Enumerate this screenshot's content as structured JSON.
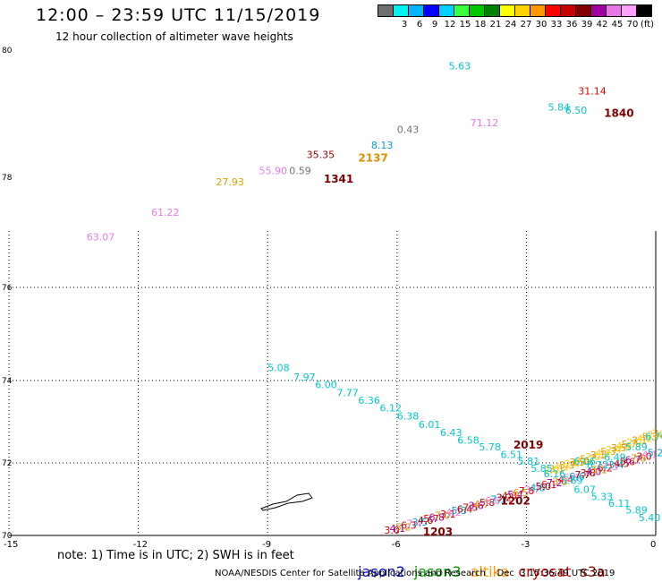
{
  "header": {
    "title": "12:00 – 23:59 UTC 11/15/2019",
    "subtitle": "12 hour collection of altimeter wave heights"
  },
  "legend": {
    "colors": [
      "#777777",
      "#00ffff",
      "#00ccff",
      "#0000ff",
      "#00ccff",
      "#00ff00",
      "#00cc00",
      "#009900",
      "#ffff00",
      "#ffcc00",
      "#ff9900",
      "#ff0000",
      "#cc0000",
      "#990000",
      "#990099",
      "#cc66cc",
      "#ff99ff",
      "#000000"
    ],
    "swatch_colors": [
      "#6e6e6e",
      "#00f2f2",
      "#00b4ff",
      "#0000ff",
      "#00d2ff",
      "#3cff3c",
      "#00c800",
      "#008200",
      "#ffff00",
      "#ffd200",
      "#ff9600",
      "#ff0000",
      "#c80000",
      "#820000",
      "#a000a0",
      "#e678e6",
      "#ffa0ff",
      "#000000"
    ],
    "labels": [
      "3",
      "6",
      "9",
      "12",
      "15",
      "18",
      "21",
      "24",
      "27",
      "30",
      "33",
      "36",
      "39",
      "42",
      "45",
      "70"
    ],
    "unit": "(ft)"
  },
  "axes": {
    "lat_labels": [
      "80",
      "78",
      "76",
      "74",
      "72",
      "70"
    ],
    "lon_labels": [
      "-15",
      "-12",
      "-9",
      "-6",
      "-3",
      "0"
    ]
  },
  "wave_labels": [
    {
      "text": "5.63",
      "color": "#00c8c8",
      "lon": -4.8,
      "lat": 79.7
    },
    {
      "text": "31.14",
      "color": "#e00000",
      "lon": -1.8,
      "lat": 79.3
    },
    {
      "text": "5.84",
      "color": "#00c8c8",
      "lon": -2.5,
      "lat": 79.05
    },
    {
      "text": "6.50",
      "color": "#00c8c8",
      "lon": -2.1,
      "lat": 79.0
    },
    {
      "text": "71.12",
      "color": "#e678e6",
      "lon": -4.3,
      "lat": 78.8
    },
    {
      "text": "0.43",
      "color": "#707070",
      "lon": -6.0,
      "lat": 78.7
    },
    {
      "text": "8.13",
      "color": "#00a0d0",
      "lon": -6.6,
      "lat": 78.45
    },
    {
      "text": "35.35",
      "color": "#990000",
      "lon": -8.1,
      "lat": 78.3
    },
    {
      "text": "55.90",
      "color": "#e678e6",
      "lon": -9.2,
      "lat": 78.05
    },
    {
      "text": "0.59",
      "color": "#707070",
      "lon": -8.5,
      "lat": 78.05
    },
    {
      "text": "27.93",
      "color": "#e0a000",
      "lon": -10.2,
      "lat": 77.85
    },
    {
      "text": "61.22",
      "color": "#e678e6",
      "lon": -11.7,
      "lat": 77.3
    },
    {
      "text": "63.07",
      "color": "#e678e6",
      "lon": -13.2,
      "lat": 76.85
    },
    {
      "text": "5.08",
      "color": "#00c8c8",
      "lon": -9.0,
      "lat": 74.2
    },
    {
      "text": "7.97",
      "color": "#00c8c8",
      "lon": -8.4,
      "lat": 74.0
    },
    {
      "text": "6.00",
      "color": "#00c8c8",
      "lon": -7.9,
      "lat": 73.82
    },
    {
      "text": "7.77",
      "color": "#00c8c8",
      "lon": -7.4,
      "lat": 73.62
    },
    {
      "text": "6.36",
      "color": "#00c8c8",
      "lon": -6.9,
      "lat": 73.44
    },
    {
      "text": "6.12",
      "color": "#00c8c8",
      "lon": -6.4,
      "lat": 73.25
    },
    {
      "text": "6.38",
      "color": "#00c8c8",
      "lon": -6.0,
      "lat": 73.05
    },
    {
      "text": "6.01",
      "color": "#00c8c8",
      "lon": -5.5,
      "lat": 72.85
    },
    {
      "text": "6.43",
      "color": "#00c8c8",
      "lon": -5.0,
      "lat": 72.65
    },
    {
      "text": "6.58",
      "color": "#00c8c8",
      "lon": -4.6,
      "lat": 72.47
    },
    {
      "text": "5.78",
      "color": "#00c8c8",
      "lon": -4.1,
      "lat": 72.3
    },
    {
      "text": "6.51",
      "color": "#00c8c8",
      "lon": -3.6,
      "lat": 72.12
    },
    {
      "text": "5.81",
      "color": "#00c8c8",
      "lon": -3.2,
      "lat": 71.95
    },
    {
      "text": "5.85",
      "color": "#00c8c8",
      "lon": -2.9,
      "lat": 71.75
    },
    {
      "text": "5.69",
      "color": "#00c8c8",
      "lon": -2.2,
      "lat": 71.42
    },
    {
      "text": "6.07",
      "color": "#00c8c8",
      "lon": -1.9,
      "lat": 71.17
    },
    {
      "text": "5.33",
      "color": "#00c8c8",
      "lon": -1.5,
      "lat": 70.98
    },
    {
      "text": "6.11",
      "color": "#00c8c8",
      "lon": -1.1,
      "lat": 70.79
    },
    {
      "text": "5.89",
      "color": "#00c8c8",
      "lon": -0.7,
      "lat": 70.6
    },
    {
      "text": "5.40",
      "color": "#00c8c8",
      "lon": -0.4,
      "lat": 70.4
    },
    {
      "text": "6.49",
      "color": "#00c8c8",
      "lon": -1.2,
      "lat": 72.05
    },
    {
      "text": "5.89",
      "color": "#00c8c8",
      "lon": -0.7,
      "lat": 72.3
    },
    {
      "text": "6.72",
      "color": "#00c8c8",
      "lon": -1.6,
      "lat": 71.85
    },
    {
      "text": "6.76",
      "color": "#00c8c8",
      "lon": -0.25,
      "lat": 72.55
    },
    {
      "text": "6.16",
      "color": "#00c8c8",
      "lon": -2.6,
      "lat": 71.6
    },
    {
      "text": "6.06",
      "color": "#00c8c8",
      "lon": -1.9,
      "lat": 71.95
    }
  ],
  "time_labels": [
    {
      "text": "1840",
      "color": "#800000",
      "lon": -1.2,
      "lat": 78.95
    },
    {
      "text": "1341",
      "color": "#800000",
      "lon": -7.7,
      "lat": 77.9
    },
    {
      "text": "2137",
      "color": "#e09000",
      "lon": -6.9,
      "lat": 78.25
    },
    {
      "text": "2019",
      "color": "#800000",
      "lon": -3.3,
      "lat": 72.35
    },
    {
      "text": "1202",
      "color": "#800000",
      "lon": -3.6,
      "lat": 70.85
    },
    {
      "text": "1203",
      "color": "#800000",
      "lon": -5.4,
      "lat": 70.0
    }
  ],
  "footer": {
    "note": "note: 1) Time is in UTC; 2) SWH is in feet",
    "satellites": [
      {
        "name": "jason2",
        "color": "#0000cc"
      },
      {
        "name": "jason3",
        "color": "#009900"
      },
      {
        "name": "altika",
        "color": "#ff9900"
      },
      {
        "name": "cryosat",
        "color": "#cc0000"
      },
      {
        "name": "s3a",
        "color": "#990000"
      }
    ],
    "credit": "NOAA/NESDIS Center for Satellite Applications and Research    Dec  3 15:36:49 UTC 2019"
  }
}
